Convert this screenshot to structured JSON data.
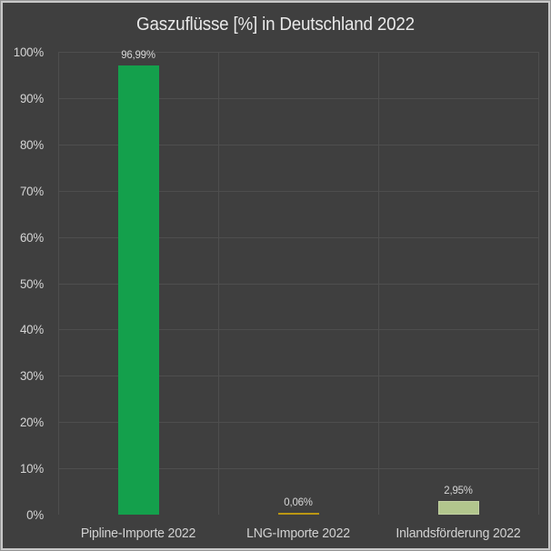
{
  "colors": {
    "background": "#3f3f3f",
    "frame_border": "#c9c9c9",
    "gridline": "#4e4e4e",
    "title_text": "#e9e9e9",
    "axis_text": "#d4d4d4",
    "label_text": "#d6d6d6"
  },
  "chart_data": {
    "type": "bar",
    "title": "Gaszuflüsse [%] in Deutschland 2022",
    "categories": [
      "Pipline-Importe 2022",
      "LNG-Importe 2022",
      "Inlandsförderung 2022"
    ],
    "values": [
      96.99,
      0.06,
      2.95
    ],
    "data_labels": [
      "96,99%",
      "0,06%",
      "2,95%"
    ],
    "bar_colors": [
      "#14a04c",
      "#bb9713",
      "#b2c68d"
    ],
    "bar_border_colors": [
      "#14a04c",
      "#bb9713",
      "#c3d1a2"
    ],
    "xlabel": "",
    "ylabel": "",
    "ylim": [
      0,
      100
    ],
    "ytick_labels": [
      "0%",
      "10%",
      "20%",
      "30%",
      "40%",
      "50%",
      "60%",
      "70%",
      "80%",
      "90%",
      "100%"
    ],
    "grid": true,
    "legend": false
  }
}
